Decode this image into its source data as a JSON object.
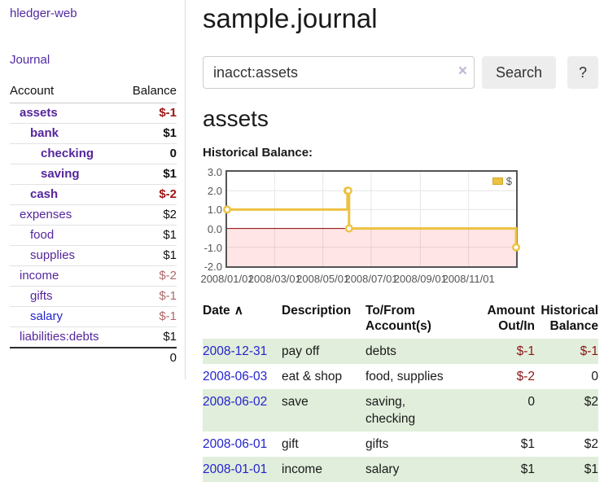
{
  "app": {
    "brand": "hledger-web",
    "nav_journal": "Journal"
  },
  "colors": {
    "link_purple": "#55269c",
    "link_blue": "#2323cf",
    "negative_strong": "#9a1515",
    "negative_soft": "#b0696a",
    "register_row_green": "#e1eedb",
    "chart_line": "#edc240",
    "chart_negative_fill": "rgba(255,0,0,0.10)",
    "chart_zero_line": "#8b0000"
  },
  "sidebar": {
    "accounts_header": {
      "account": "Account",
      "balance": "Balance"
    },
    "rows": [
      {
        "name": "assets",
        "depth": 1,
        "bold": true,
        "balance": "$-1",
        "balance_style": "neg-strong"
      },
      {
        "name": "bank",
        "depth": 2,
        "bold": true,
        "balance": "$1",
        "balance_style": "pos"
      },
      {
        "name": "checking",
        "depth": 3,
        "bold": true,
        "balance": "0",
        "balance_style": "pos"
      },
      {
        "name": "saving",
        "depth": 3,
        "bold": true,
        "balance": "$1",
        "balance_style": "pos"
      },
      {
        "name": "cash",
        "depth": 2,
        "bold": true,
        "balance": "$-2",
        "balance_style": "neg-strong"
      },
      {
        "name": "expenses",
        "depth": 1,
        "bold": false,
        "balance": "$2",
        "balance_style": "pos"
      },
      {
        "name": "food",
        "depth": 2,
        "bold": false,
        "balance": "$1",
        "balance_style": "pos"
      },
      {
        "name": "supplies",
        "depth": 2,
        "bold": false,
        "balance": "$1",
        "balance_style": "pos"
      },
      {
        "name": "income",
        "depth": 1,
        "bold": false,
        "balance": "$-2",
        "balance_style": "neg-soft"
      },
      {
        "name": "gifts",
        "depth": 2,
        "bold": false,
        "balance": "$-1",
        "balance_style": "neg-soft"
      },
      {
        "name": "salary",
        "depth": 2,
        "bold": false,
        "link_color": "blue",
        "balance": "$-1",
        "balance_style": "neg-soft"
      },
      {
        "name": "liabilities:debts",
        "depth": 1,
        "bold": false,
        "balance": "$1",
        "balance_style": "pos"
      }
    ],
    "total": "0"
  },
  "header": {
    "title": "sample.journal"
  },
  "search": {
    "value": "inacct:assets",
    "clear_icon": "×",
    "button": "Search",
    "help_button": "?"
  },
  "account_page": {
    "title": "assets",
    "chart_label": "Historical Balance:"
  },
  "chart_data": {
    "type": "line",
    "title": "Historical Balance:",
    "xlim": [
      "2008-01-01",
      "2008-12-31"
    ],
    "ylim": [
      -2,
      3
    ],
    "x_ticks": [
      "2008/01/01",
      "2008/03/01",
      "2008/05/01",
      "2008/07/01",
      "2008/09/01",
      "2008/11/01"
    ],
    "y_ticks": [
      3.0,
      2.0,
      1.0,
      0.0,
      -1.0,
      -2.0
    ],
    "grid": true,
    "legend_position": "top-right",
    "negative_fill": "rgba(255,0,0,0.10)",
    "zero_line_color": "#8b0000",
    "series": [
      {
        "name": "$",
        "color": "#edc240",
        "step": true,
        "points": [
          [
            "2008-01-01",
            1
          ],
          [
            "2008-06-01",
            2
          ],
          [
            "2008-06-02",
            2
          ],
          [
            "2008-06-03",
            0
          ],
          [
            "2008-12-31",
            -1
          ]
        ]
      }
    ]
  },
  "register": {
    "sort_icon": "∧",
    "columns": {
      "date": "Date",
      "description": "Description",
      "accounts": "To/From Account(s)",
      "amount": "Amount Out/In",
      "balance": "Historical Balance"
    },
    "rows": [
      {
        "date": "2008-12-31",
        "description": "pay off",
        "accounts": "debts",
        "amount": "$-1",
        "amount_neg": true,
        "balance": "$-1",
        "balance_neg": true,
        "shaded": true
      },
      {
        "date": "2008-06-03",
        "description": "eat & shop",
        "accounts": "food, supplies",
        "amount": "$-2",
        "amount_neg": true,
        "balance": "0",
        "balance_neg": false,
        "shaded": false
      },
      {
        "date": "2008-06-02",
        "description": "save",
        "accounts": "saving, checking",
        "amount": "0",
        "amount_neg": false,
        "balance": "$2",
        "balance_neg": false,
        "shaded": true
      },
      {
        "date": "2008-06-01",
        "description": "gift",
        "accounts": "gifts",
        "amount": "$1",
        "amount_neg": false,
        "balance": "$2",
        "balance_neg": false,
        "shaded": false
      },
      {
        "date": "2008-01-01",
        "description": "income",
        "accounts": "salary",
        "amount": "$1",
        "amount_neg": false,
        "balance": "$1",
        "balance_neg": false,
        "shaded": true
      }
    ]
  }
}
